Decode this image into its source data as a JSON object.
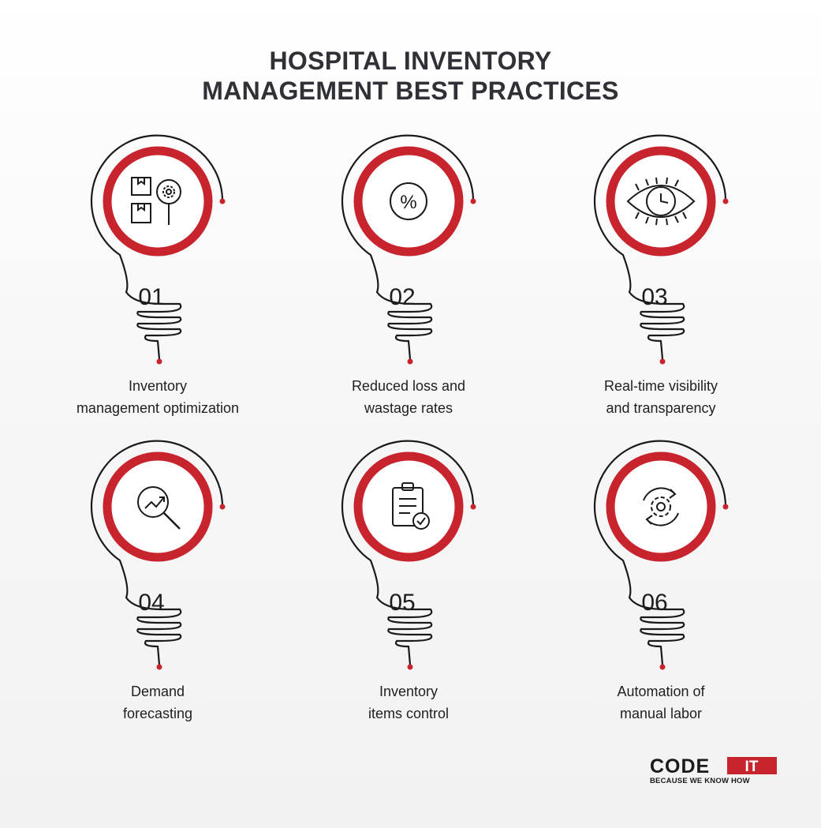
{
  "title": {
    "line1": "HOSPITAL INVENTORY",
    "line2": "MANAGEMENT BEST PRACTICES"
  },
  "colors": {
    "accent": "#c8242d",
    "text": "#2f3136",
    "line": "#1a1a1a"
  },
  "practices": [
    {
      "number": "01",
      "line1": "Inventory",
      "line2": "management optimization",
      "icon": "boxes-gear-icon"
    },
    {
      "number": "02",
      "line1": "Reduced loss and",
      "line2": "wastage rates",
      "icon": "percent-icon"
    },
    {
      "number": "03",
      "line1": "Real-time visibility",
      "line2": "and transparency",
      "icon": "eye-clock-icon"
    },
    {
      "number": "04",
      "line1": "Demand",
      "line2": "forecasting",
      "icon": "magnifier-chart-icon"
    },
    {
      "number": "05",
      "line1": "Inventory",
      "line2": "items control",
      "icon": "clipboard-check-icon"
    },
    {
      "number": "06",
      "line1": "Automation of",
      "line2": "manual labor",
      "icon": "gear-cycle-icon"
    }
  ],
  "logo": {
    "brand": "CODE",
    "badge": "IT",
    "tagline": "BECAUSE WE KNOW HOW"
  }
}
